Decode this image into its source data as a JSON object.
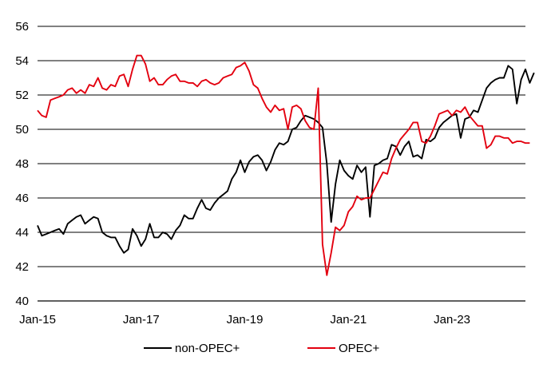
{
  "chart_data": {
    "type": "line",
    "title": "",
    "xlabel": "",
    "ylabel": "",
    "ylim": [
      40,
      56
    ],
    "yticks": [
      "40",
      "42",
      "44",
      "46",
      "48",
      "50",
      "52",
      "54",
      "56"
    ],
    "xticks": [
      "Jan-15",
      "Jan-17",
      "Jan-19",
      "Jan-21",
      "Jan-23"
    ],
    "x_range": [
      "2015-01",
      "2024-06"
    ],
    "grid": "horizontal",
    "legend_position": "bottom",
    "series": [
      {
        "name": "non-OPEC+",
        "color": "#000000",
        "points": [
          [
            "2015-01",
            44.4
          ],
          [
            "2015-02",
            43.8
          ],
          [
            "2015-03",
            43.9
          ],
          [
            "2015-04",
            44.0
          ],
          [
            "2015-05",
            44.1
          ],
          [
            "2015-06",
            44.2
          ],
          [
            "2015-07",
            43.9
          ],
          [
            "2015-08",
            44.5
          ],
          [
            "2015-09",
            44.7
          ],
          [
            "2015-10",
            44.9
          ],
          [
            "2015-11",
            45.0
          ],
          [
            "2015-12",
            44.5
          ],
          [
            "2016-01",
            44.7
          ],
          [
            "2016-02",
            44.9
          ],
          [
            "2016-03",
            44.8
          ],
          [
            "2016-04",
            44.0
          ],
          [
            "2016-05",
            43.8
          ],
          [
            "2016-06",
            43.7
          ],
          [
            "2016-07",
            43.7
          ],
          [
            "2016-08",
            43.2
          ],
          [
            "2016-09",
            42.8
          ],
          [
            "2016-10",
            43.0
          ],
          [
            "2016-11",
            44.2
          ],
          [
            "2016-12",
            43.8
          ],
          [
            "2017-01",
            43.2
          ],
          [
            "2017-02",
            43.6
          ],
          [
            "2017-03",
            44.5
          ],
          [
            "2017-04",
            43.7
          ],
          [
            "2017-05",
            43.7
          ],
          [
            "2017-06",
            44.0
          ],
          [
            "2017-07",
            43.9
          ],
          [
            "2017-08",
            43.6
          ],
          [
            "2017-09",
            44.1
          ],
          [
            "2017-10",
            44.4
          ],
          [
            "2017-11",
            45.0
          ],
          [
            "2017-12",
            44.8
          ],
          [
            "2018-01",
            44.8
          ],
          [
            "2018-02",
            45.4
          ],
          [
            "2018-03",
            45.9
          ],
          [
            "2018-04",
            45.4
          ],
          [
            "2018-05",
            45.3
          ],
          [
            "2018-06",
            45.7
          ],
          [
            "2018-07",
            46.0
          ],
          [
            "2018-08",
            46.2
          ],
          [
            "2018-09",
            46.4
          ],
          [
            "2018-10",
            47.1
          ],
          [
            "2018-11",
            47.5
          ],
          [
            "2018-12",
            48.2
          ],
          [
            "2019-01",
            47.5
          ],
          [
            "2019-02",
            48.1
          ],
          [
            "2019-03",
            48.4
          ],
          [
            "2019-04",
            48.5
          ],
          [
            "2019-05",
            48.2
          ],
          [
            "2019-06",
            47.6
          ],
          [
            "2019-07",
            48.1
          ],
          [
            "2019-08",
            48.8
          ],
          [
            "2019-09",
            49.2
          ],
          [
            "2019-10",
            49.1
          ],
          [
            "2019-11",
            49.3
          ],
          [
            "2019-12",
            50.0
          ],
          [
            "2020-01",
            50.1
          ],
          [
            "2020-02",
            50.5
          ],
          [
            "2020-03",
            50.8
          ],
          [
            "2020-04",
            50.7
          ],
          [
            "2020-05",
            50.6
          ],
          [
            "2020-06",
            50.4
          ],
          [
            "2020-07",
            50.1
          ],
          [
            "2020-08",
            48.0
          ],
          [
            "2020-09",
            44.6
          ],
          [
            "2020-10",
            46.8
          ],
          [
            "2020-11",
            48.2
          ],
          [
            "2020-12",
            47.6
          ],
          [
            "2021-01",
            47.3
          ],
          [
            "2021-02",
            47.1
          ],
          [
            "2021-03",
            47.9
          ],
          [
            "2021-04",
            47.5
          ],
          [
            "2021-05",
            47.8
          ],
          [
            "2021-06",
            44.9
          ],
          [
            "2021-07",
            47.9
          ],
          [
            "2021-08",
            48.0
          ],
          [
            "2021-09",
            48.2
          ],
          [
            "2021-10",
            48.3
          ],
          [
            "2021-11",
            49.1
          ],
          [
            "2021-12",
            49.0
          ],
          [
            "2022-01",
            48.5
          ],
          [
            "2022-02",
            49.0
          ],
          [
            "2022-03",
            49.3
          ],
          [
            "2022-04",
            48.4
          ],
          [
            "2022-05",
            48.5
          ],
          [
            "2022-06",
            48.3
          ],
          [
            "2022-07",
            49.4
          ],
          [
            "2022-08",
            49.3
          ],
          [
            "2022-09",
            49.5
          ],
          [
            "2022-10",
            50.1
          ],
          [
            "2022-11",
            50.4
          ],
          [
            "2022-12",
            50.6
          ],
          [
            "2023-01",
            50.8
          ],
          [
            "2023-02",
            50.9
          ],
          [
            "2023-03",
            49.5
          ],
          [
            "2023-04",
            50.6
          ],
          [
            "2023-05",
            50.7
          ],
          [
            "2023-06",
            51.1
          ],
          [
            "2023-07",
            51.0
          ],
          [
            "2023-08",
            51.7
          ],
          [
            "2023-09",
            52.4
          ],
          [
            "2023-10",
            52.7
          ],
          [
            "2023-11",
            52.9
          ],
          [
            "2023-12",
            53.0
          ],
          [
            "2024-01",
            53.0
          ],
          [
            "2024-02",
            53.7
          ],
          [
            "2024-03",
            53.5
          ],
          [
            "2024-04",
            51.5
          ],
          [
            "2024-05",
            52.9
          ],
          [
            "2024-06",
            53.5
          ],
          [
            "2024-07",
            52.7
          ],
          [
            "2024-08",
            53.3
          ]
        ]
      },
      {
        "name": "OPEC+",
        "color": "#e3000f",
        "points": [
          [
            "2015-01",
            51.1
          ],
          [
            "2015-02",
            50.8
          ],
          [
            "2015-03",
            50.7
          ],
          [
            "2015-04",
            51.7
          ],
          [
            "2015-05",
            51.8
          ],
          [
            "2015-06",
            51.9
          ],
          [
            "2015-07",
            52.0
          ],
          [
            "2015-08",
            52.3
          ],
          [
            "2015-09",
            52.4
          ],
          [
            "2015-10",
            52.1
          ],
          [
            "2015-11",
            52.3
          ],
          [
            "2015-12",
            52.1
          ],
          [
            "2016-01",
            52.6
          ],
          [
            "2016-02",
            52.5
          ],
          [
            "2016-03",
            53.0
          ],
          [
            "2016-04",
            52.4
          ],
          [
            "2016-05",
            52.3
          ],
          [
            "2016-06",
            52.6
          ],
          [
            "2016-07",
            52.5
          ],
          [
            "2016-08",
            53.1
          ],
          [
            "2016-09",
            53.2
          ],
          [
            "2016-10",
            52.5
          ],
          [
            "2016-11",
            53.5
          ],
          [
            "2016-12",
            54.3
          ],
          [
            "2017-01",
            54.3
          ],
          [
            "2017-02",
            53.8
          ],
          [
            "2017-03",
            52.8
          ],
          [
            "2017-04",
            53.0
          ],
          [
            "2017-05",
            52.6
          ],
          [
            "2017-06",
            52.6
          ],
          [
            "2017-07",
            52.9
          ],
          [
            "2017-08",
            53.1
          ],
          [
            "2017-09",
            53.2
          ],
          [
            "2017-10",
            52.8
          ],
          [
            "2017-11",
            52.8
          ],
          [
            "2017-12",
            52.7
          ],
          [
            "2018-01",
            52.7
          ],
          [
            "2018-02",
            52.5
          ],
          [
            "2018-03",
            52.8
          ],
          [
            "2018-04",
            52.9
          ],
          [
            "2018-05",
            52.7
          ],
          [
            "2018-06",
            52.6
          ],
          [
            "2018-07",
            52.7
          ],
          [
            "2018-08",
            53.0
          ],
          [
            "2018-09",
            53.1
          ],
          [
            "2018-10",
            53.2
          ],
          [
            "2018-11",
            53.6
          ],
          [
            "2018-12",
            53.7
          ],
          [
            "2019-01",
            53.9
          ],
          [
            "2019-02",
            53.4
          ],
          [
            "2019-03",
            52.6
          ],
          [
            "2019-04",
            52.4
          ],
          [
            "2019-05",
            51.8
          ],
          [
            "2019-06",
            51.3
          ],
          [
            "2019-07",
            51.0
          ],
          [
            "2019-08",
            51.4
          ],
          [
            "2019-09",
            51.1
          ],
          [
            "2019-10",
            51.2
          ],
          [
            "2019-11",
            50.0
          ],
          [
            "2019-12",
            51.3
          ],
          [
            "2020-01",
            51.4
          ],
          [
            "2020-02",
            51.2
          ],
          [
            "2020-03",
            50.5
          ],
          [
            "2020-04",
            50.1
          ],
          [
            "2020-05",
            50.0
          ],
          [
            "2020-06",
            52.4
          ],
          [
            "2020-07",
            43.3
          ],
          [
            "2020-08",
            41.5
          ],
          [
            "2020-09",
            42.8
          ],
          [
            "2020-10",
            44.3
          ],
          [
            "2020-11",
            44.1
          ],
          [
            "2020-12",
            44.4
          ],
          [
            "2021-01",
            45.2
          ],
          [
            "2021-02",
            45.5
          ],
          [
            "2021-03",
            46.1
          ],
          [
            "2021-04",
            45.9
          ],
          [
            "2021-05",
            46.0
          ],
          [
            "2021-06",
            46.0
          ],
          [
            "2021-07",
            46.5
          ],
          [
            "2021-08",
            47.0
          ],
          [
            "2021-09",
            47.5
          ],
          [
            "2021-10",
            47.4
          ],
          [
            "2021-11",
            48.3
          ],
          [
            "2021-12",
            48.9
          ],
          [
            "2022-01",
            49.4
          ],
          [
            "2022-02",
            49.7
          ],
          [
            "2022-03",
            50.0
          ],
          [
            "2022-04",
            50.4
          ],
          [
            "2022-05",
            50.4
          ],
          [
            "2022-06",
            49.3
          ],
          [
            "2022-07",
            49.2
          ],
          [
            "2022-08",
            49.6
          ],
          [
            "2022-09",
            50.2
          ],
          [
            "2022-10",
            50.9
          ],
          [
            "2022-11",
            51.0
          ],
          [
            "2022-12",
            51.1
          ],
          [
            "2023-01",
            50.8
          ],
          [
            "2023-02",
            51.1
          ],
          [
            "2023-03",
            51.0
          ],
          [
            "2023-04",
            51.3
          ],
          [
            "2023-05",
            50.8
          ],
          [
            "2023-06",
            50.5
          ],
          [
            "2023-07",
            50.2
          ],
          [
            "2023-08",
            50.2
          ],
          [
            "2023-09",
            48.9
          ],
          [
            "2023-10",
            49.1
          ],
          [
            "2023-11",
            49.6
          ],
          [
            "2023-12",
            49.6
          ],
          [
            "2024-01",
            49.5
          ],
          [
            "2024-02",
            49.5
          ],
          [
            "2024-03",
            49.2
          ],
          [
            "2024-04",
            49.3
          ],
          [
            "2024-05",
            49.3
          ],
          [
            "2024-06",
            49.2
          ],
          [
            "2024-07",
            49.2
          ]
        ]
      }
    ]
  }
}
